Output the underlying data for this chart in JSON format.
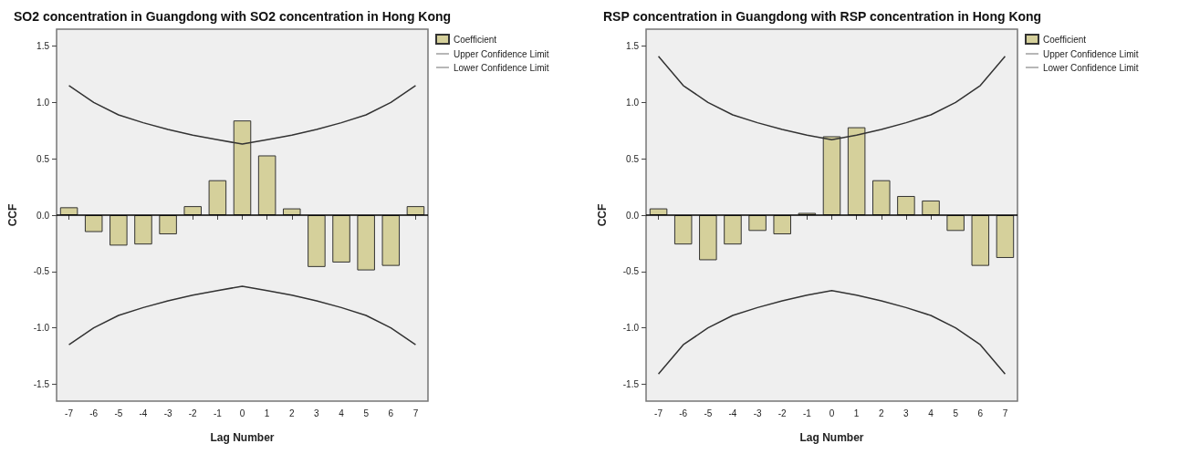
{
  "chart_data": [
    {
      "type": "bar",
      "title": "SO2 concentration in Guangdong with SO2 concentration in Hong Kong",
      "xlabel": "Lag Number",
      "ylabel": "CCF",
      "categories": [
        "-7",
        "-6",
        "-5",
        "-4",
        "-3",
        "-2",
        "-1",
        "0",
        "1",
        "2",
        "3",
        "4",
        "5",
        "6",
        "7"
      ],
      "series": [
        {
          "name": "Coefficient",
          "color": "#d5d09b",
          "values": [
            0.07,
            -0.15,
            -0.27,
            -0.26,
            -0.17,
            0.08,
            0.31,
            0.84,
            0.53,
            0.06,
            -0.46,
            -0.42,
            -0.49,
            -0.45,
            0.08
          ]
        },
        {
          "name": "Upper Confidence Limit",
          "type": "line",
          "color": "#333333",
          "values": [
            1.15,
            1.0,
            0.89,
            0.82,
            0.76,
            0.71,
            0.67,
            0.63,
            0.67,
            0.71,
            0.76,
            0.82,
            0.89,
            1.0,
            1.15
          ]
        },
        {
          "name": "Lower Confidence Limit",
          "type": "line",
          "color": "#333333",
          "values": [
            -1.15,
            -1.0,
            -0.89,
            -0.82,
            -0.76,
            -0.71,
            -0.67,
            -0.63,
            -0.67,
            -0.71,
            -0.76,
            -0.82,
            -0.89,
            -1.0,
            -1.15
          ]
        }
      ],
      "ylim": [
        -1.65,
        1.65
      ],
      "yticks": [
        {
          "value": -1.5,
          "label": "-1.5"
        },
        {
          "value": -1,
          "label": "-1.0"
        },
        {
          "value": -0.5,
          "label": "-0.5"
        },
        {
          "value": 0,
          "label": "0.0"
        },
        {
          "value": 0.5,
          "label": "0.5"
        },
        {
          "value": 1,
          "label": "1.0"
        },
        {
          "value": 1.5,
          "label": "1.5"
        }
      ],
      "ref_lines": [
        {
          "axis": "y",
          "value": 0,
          "color": "#000000"
        }
      ],
      "grid": false,
      "legend": "top right",
      "marker": "none",
      "line_style": "solid"
    },
    {
      "type": "bar",
      "title": "RSP concentration in Guangdong with RSP concentration in Hong Kong",
      "xlabel": "Lag Number",
      "ylabel": "CCF",
      "categories": [
        "-7",
        "-6",
        "-5",
        "-4",
        "-3",
        "-2",
        "-1",
        "0",
        "1",
        "2",
        "3",
        "4",
        "5",
        "6",
        "7"
      ],
      "series": [
        {
          "name": "Coefficient",
          "color": "#d5d09b",
          "values": [
            0.06,
            -0.26,
            -0.4,
            -0.26,
            -0.14,
            -0.17,
            0.02,
            0.7,
            0.78,
            0.31,
            0.17,
            0.13,
            -0.14,
            -0.45,
            -0.38
          ]
        },
        {
          "name": "Upper Confidence Limit",
          "type": "line",
          "color": "#333333",
          "values": [
            1.41,
            1.15,
            1.0,
            0.89,
            0.82,
            0.76,
            0.71,
            0.67,
            0.71,
            0.76,
            0.82,
            0.89,
            1.0,
            1.15,
            1.41
          ]
        },
        {
          "name": "Lower Confidence Limit",
          "type": "line",
          "color": "#333333",
          "values": [
            -1.41,
            -1.15,
            -1.0,
            -0.89,
            -0.82,
            -0.76,
            -0.71,
            -0.67,
            -0.71,
            -0.76,
            -0.82,
            -0.89,
            -1.0,
            -1.15,
            -1.41
          ]
        }
      ],
      "ylim": [
        -1.65,
        1.65
      ],
      "yticks": [
        {
          "value": -1.5,
          "label": "-1.5"
        },
        {
          "value": -1,
          "label": "-1.0"
        },
        {
          "value": -0.5,
          "label": "-0.5"
        },
        {
          "value": 0,
          "label": "0.0"
        },
        {
          "value": 0.5,
          "label": "0.5"
        },
        {
          "value": 1,
          "label": "1.0"
        },
        {
          "value": 1.5,
          "label": "1.5"
        }
      ],
      "ref_lines": [
        {
          "axis": "y",
          "value": 0,
          "color": "#000000"
        }
      ],
      "grid": false,
      "legend": "top right",
      "marker": "none",
      "line_style": "solid"
    }
  ]
}
